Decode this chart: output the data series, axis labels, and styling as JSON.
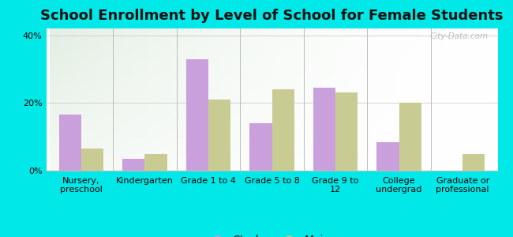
{
  "title": "School Enrollment by Level of School for Female Students",
  "categories": [
    "Nursery,\npreschool",
    "Kindergarten",
    "Grade 1 to 4",
    "Grade 5 to 8",
    "Grade 9 to\n12",
    "College\nundergrad",
    "Graduate or\nprofessional"
  ],
  "starks": [
    16.5,
    3.5,
    33.0,
    14.0,
    24.5,
    8.5,
    0.0
  ],
  "maine": [
    6.5,
    5.0,
    21.0,
    24.0,
    23.0,
    20.0,
    5.0
  ],
  "starks_color": "#c9a0dc",
  "maine_color": "#c8cc93",
  "bg_color": "#00e8e8",
  "ylim": [
    0,
    42
  ],
  "yticks": [
    0,
    20,
    40
  ],
  "watermark": "City-Data.com",
  "bar_width": 0.35,
  "title_fontsize": 13,
  "tick_fontsize": 8,
  "legend_fontsize": 10
}
